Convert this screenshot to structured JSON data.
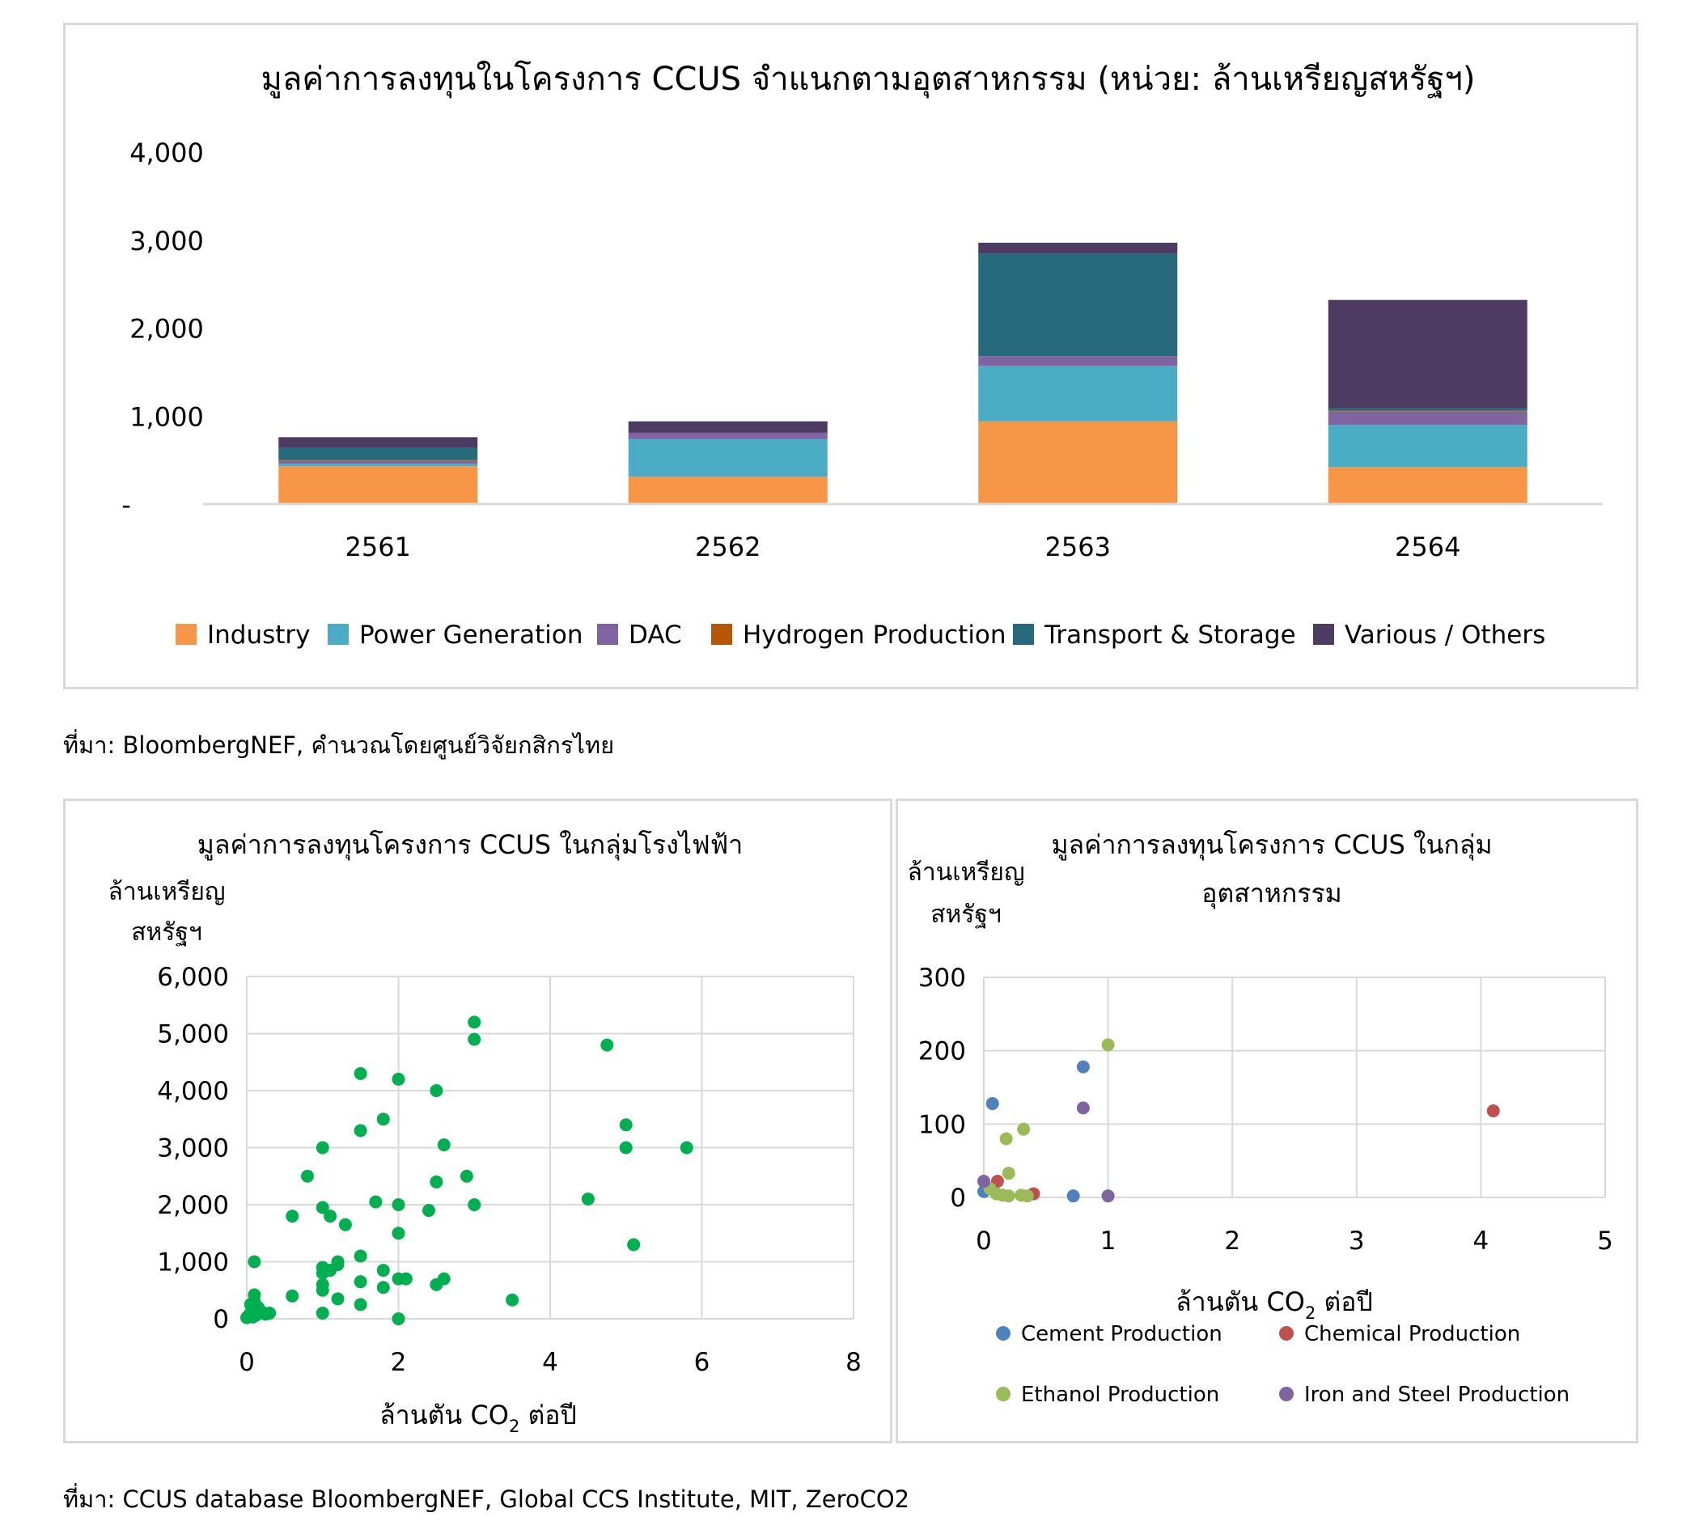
{
  "bar_chart": {
    "title": "มูลค่าการลงทุนในโครงการ CCUS จำแนกตามอุตสาหกรรม (หน่วย: ล้านเหรียญสหรัฐฯ)",
    "y_tick_labels": [
      "-",
      "1,000",
      "2,000",
      "3,000",
      "4,000"
    ],
    "legend": [
      "Industry",
      "Power Generation",
      "DAC",
      "Hydrogen Production",
      "Transport & Storage",
      "Various / Others"
    ]
  },
  "source_top": "ที่มา: BloombergNEF, คำนวณโดยศูนย์วิจัยกสิกรไทย",
  "scatter_power": {
    "title": "มูลค่าการลงทุนโครงการ CCUS ในกลุ่มโรงไฟฟ้า",
    "ylabel_line1": "ล้านเหรียญ",
    "ylabel_line2": "สหรัฐฯ",
    "xlabel_pre": "ล้านตัน CO",
    "xlabel_sub": "2",
    "xlabel_post": " ต่อปี",
    "x_tick_labels": [
      "0",
      "2",
      "4",
      "6",
      "8"
    ],
    "y_tick_labels": [
      "0",
      "1,000",
      "2,000",
      "3,000",
      "4,000",
      "5,000",
      "6,000"
    ]
  },
  "scatter_industry": {
    "title_line1": "มูลค่าการลงทุนโครงการ CCUS ในกลุ่ม",
    "title_line2": "อุตสาหกรรม",
    "ylabel_line1": "ล้านเหรียญ",
    "ylabel_line2": "สหรัฐฯ",
    "xlabel_pre": "ล้านตัน CO",
    "xlabel_sub": "2",
    "xlabel_post": " ต่อปี",
    "x_tick_labels": [
      "0",
      "1",
      "2",
      "3",
      "4",
      "5"
    ],
    "y_tick_labels": [
      "0",
      "100",
      "200",
      "300"
    ],
    "legend": [
      "Cement Production",
      "Chemical Production",
      "Ethanol Production",
      "Iron and Steel Production"
    ]
  },
  "source_bottom": "ที่มา: CCUS database BloombergNEF, Global CCS Institute, MIT, ZeroCO2",
  "colors": {
    "Industry": "#f79646",
    "Power Generation": "#4bacc6",
    "DAC": "#8064a2",
    "Hydrogen Production": "#b65708",
    "Transport & Storage": "#276a7c",
    "Various / Others": "#4e3b62",
    "power_scatter": "#00b050",
    "Cement Production": "#4f81bd",
    "Chemical Production": "#c0504d",
    "Ethanol Production": "#9bbb59",
    "Iron and Steel Production": "#8064a2"
  },
  "chart_data": [
    {
      "type": "bar",
      "stacked": true,
      "title": "มูลค่าการลงทุนในโครงการ CCUS จำแนกตามอุตสาหกรรม (หน่วย: ล้านเหรียญสหรัฐฯ)",
      "categories": [
        "2561",
        "2562",
        "2563",
        "2564"
      ],
      "ylim": [
        0,
        4000
      ],
      "legend_position": "bottom",
      "grid": false,
      "series": [
        {
          "name": "Industry",
          "values": [
            430,
            310,
            940,
            420
          ]
        },
        {
          "name": "Power Generation",
          "values": [
            30,
            430,
            630,
            480
          ]
        },
        {
          "name": "DAC",
          "values": [
            30,
            70,
            110,
            150
          ]
        },
        {
          "name": "Hydrogen Production",
          "values": [
            10,
            0,
            0,
            10
          ]
        },
        {
          "name": "Transport & Storage",
          "values": [
            140,
            0,
            1170,
            30
          ]
        },
        {
          "name": "Various / Others",
          "values": [
            120,
            130,
            120,
            1230
          ]
        }
      ]
    },
    {
      "type": "scatter",
      "title": "มูลค่าการลงทุนโครงการ CCUS ในกลุ่มโรงไฟฟ้า",
      "xlabel": "ล้านตัน CO2 ต่อปี",
      "ylabel": "ล้านเหรียญ สหรัฐฯ",
      "xlim": [
        0,
        8
      ],
      "ylim": [
        0,
        6000
      ],
      "grid": true,
      "series": [
        {
          "name": "",
          "points": [
            [
              0.0,
              20
            ],
            [
              0.02,
              50
            ],
            [
              0.05,
              100
            ],
            [
              0.05,
              250
            ],
            [
              0.08,
              30
            ],
            [
              0.1,
              150
            ],
            [
              0.1,
              300
            ],
            [
              0.1,
              420
            ],
            [
              0.12,
              60
            ],
            [
              0.15,
              200
            ],
            [
              0.2,
              120
            ],
            [
              0.25,
              80
            ],
            [
              0.3,
              100
            ],
            [
              0.1,
              1000
            ],
            [
              0.6,
              400
            ],
            [
              0.6,
              1800
            ],
            [
              0.8,
              2500
            ],
            [
              1.0,
              100
            ],
            [
              1.0,
              500
            ],
            [
              1.0,
              600
            ],
            [
              1.0,
              800
            ],
            [
              1.0,
              900
            ],
            [
              1.1,
              850
            ],
            [
              1.2,
              950
            ],
            [
              1.2,
              1000
            ],
            [
              1.0,
              1950
            ],
            [
              1.1,
              1800
            ],
            [
              1.3,
              1650
            ],
            [
              1.0,
              3000
            ],
            [
              1.2,
              350
            ],
            [
              1.5,
              250
            ],
            [
              1.5,
              650
            ],
            [
              1.5,
              1100
            ],
            [
              1.5,
              3300
            ],
            [
              1.5,
              4300
            ],
            [
              1.7,
              2050
            ],
            [
              1.8,
              550
            ],
            [
              1.8,
              850
            ],
            [
              1.8,
              3500
            ],
            [
              2.0,
              0
            ],
            [
              2.0,
              700
            ],
            [
              2.0,
              1500
            ],
            [
              2.0,
              2000
            ],
            [
              2.0,
              4200
            ],
            [
              2.1,
              700
            ],
            [
              2.4,
              1900
            ],
            [
              2.5,
              2400
            ],
            [
              2.5,
              600
            ],
            [
              2.5,
              4000
            ],
            [
              2.6,
              700
            ],
            [
              2.6,
              3050
            ],
            [
              2.9,
              2500
            ],
            [
              3.0,
              2000
            ],
            [
              3.0,
              4900
            ],
            [
              3.0,
              5200
            ],
            [
              3.5,
              330
            ],
            [
              4.5,
              2100
            ],
            [
              4.75,
              4800
            ],
            [
              5.0,
              3000
            ],
            [
              5.0,
              3400
            ],
            [
              5.1,
              1300
            ],
            [
              5.8,
              3000
            ]
          ]
        }
      ]
    },
    {
      "type": "scatter",
      "title": "มูลค่าการลงทุนโครงการ CCUS ในกลุ่ม อุตสาหกรรม",
      "xlabel": "ล้านตัน CO2 ต่อปี",
      "ylabel": "ล้านเหรียญ สหรัฐฯ",
      "xlim": [
        0,
        5
      ],
      "ylim": [
        0,
        300
      ],
      "grid": true,
      "legend_position": "bottom",
      "series": [
        {
          "name": "Cement Production",
          "points": [
            [
              0.0,
              8
            ],
            [
              0.07,
              128
            ],
            [
              0.72,
              2
            ],
            [
              0.8,
              178
            ]
          ]
        },
        {
          "name": "Chemical Production",
          "points": [
            [
              0.11,
              22
            ],
            [
              0.4,
              5
            ],
            [
              4.1,
              118
            ]
          ]
        },
        {
          "name": "Ethanol Production",
          "points": [
            [
              0.05,
              12
            ],
            [
              0.1,
              5
            ],
            [
              0.15,
              3
            ],
            [
              0.18,
              80
            ],
            [
              0.2,
              2
            ],
            [
              0.2,
              33
            ],
            [
              0.3,
              3
            ],
            [
              0.32,
              93
            ],
            [
              0.35,
              2
            ],
            [
              1.0,
              208
            ]
          ]
        },
        {
          "name": "Iron and Steel Production",
          "points": [
            [
              0.0,
              22
            ],
            [
              0.8,
              122
            ],
            [
              1.0,
              2
            ]
          ]
        }
      ]
    }
  ]
}
